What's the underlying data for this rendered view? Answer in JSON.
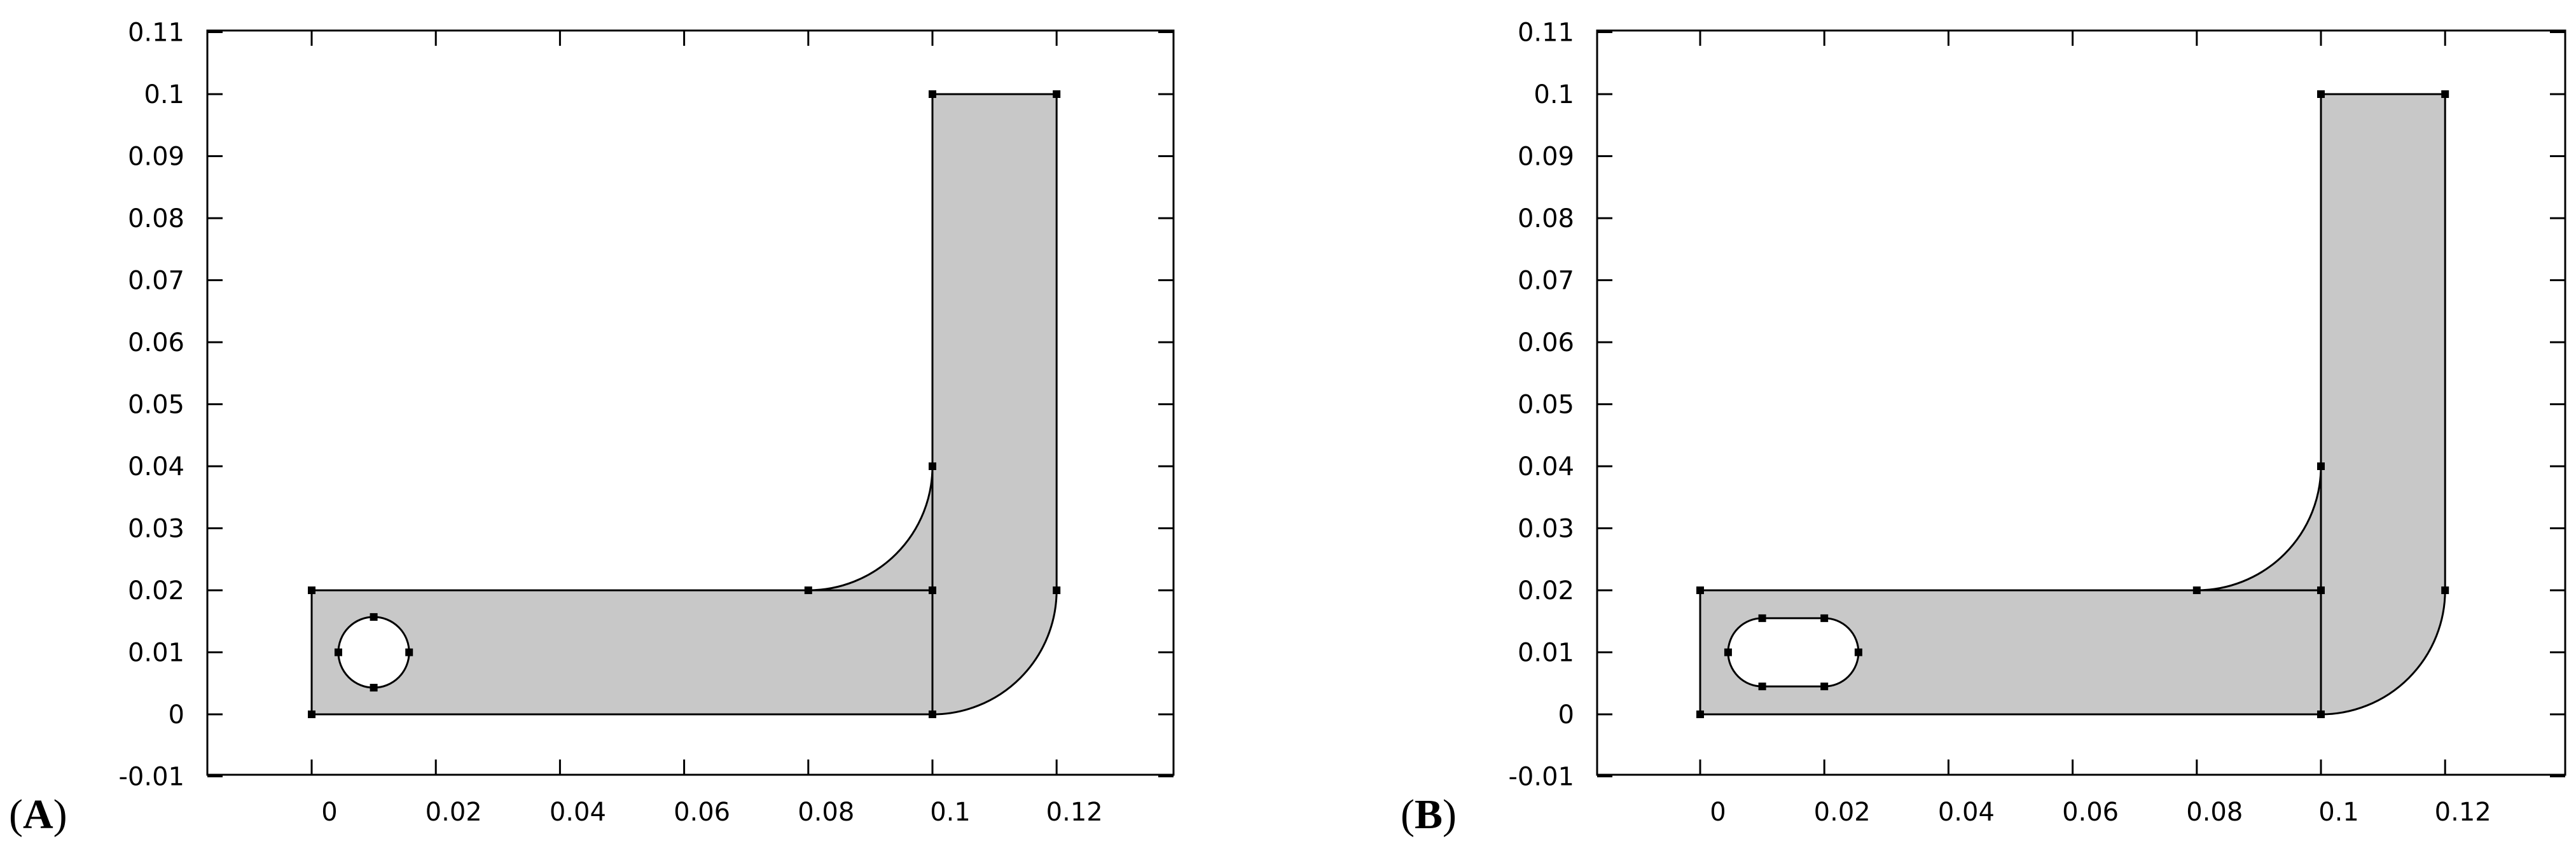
{
  "colors": {
    "background": "#ffffff",
    "domain_fill": "#c8c8c8",
    "stroke": "#000000"
  },
  "panels": [
    {
      "label_open": "(",
      "label_letter": "A",
      "label_close": ")",
      "x_ticks": [
        "0",
        "0.02",
        "0.04",
        "0.06",
        "0.08",
        "0.1",
        "0.12"
      ],
      "y_ticks": [
        "0.11",
        "0.1",
        "0.09",
        "0.08",
        "0.07",
        "0.06",
        "0.05",
        "0.04",
        "0.03",
        "0.02",
        "0.01",
        "0",
        "-0.01"
      ],
      "hole_shape": "circle"
    },
    {
      "label_open": "(",
      "label_letter": "B",
      "label_close": ")",
      "x_ticks": [
        "0",
        "0.02",
        "0.04",
        "0.06",
        "0.08",
        "0.1",
        "0.12"
      ],
      "y_ticks": [
        "0.11",
        "0.1",
        "0.09",
        "0.08",
        "0.07",
        "0.06",
        "0.05",
        "0.04",
        "0.03",
        "0.02",
        "0.01",
        "0",
        "-0.01"
      ],
      "hole_shape": "stadium"
    }
  ]
}
